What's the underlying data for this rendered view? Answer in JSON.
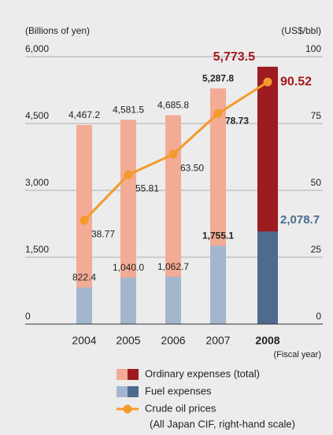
{
  "chart_data": {
    "type": "bar",
    "ylabel": "(Billions of yen)",
    "y2label": "(US$/bbl)",
    "xlabel": "(Fiscal year)",
    "categories": [
      "2004",
      "2005",
      "2006",
      "2007",
      "2008"
    ],
    "ylim": [
      0,
      6000
    ],
    "yticks": [
      0,
      {
        "value": 1500,
        "label": "1,500"
      },
      {
        "value": 3000,
        "label": "3,000"
      },
      {
        "value": 4500,
        "label": "4,500"
      },
      {
        "value": 6000,
        "label": "6,000"
      }
    ],
    "y2lim": [
      0,
      100
    ],
    "y2ticks": [
      0,
      25,
      50,
      75,
      100
    ],
    "grid": true,
    "series": [
      {
        "name": "Ordinary expenses (total)",
        "color": "#f2ab95",
        "colors": [
          "#f2ab95",
          "#f2ab95",
          "#f2ab95",
          "#f2ab95",
          "#9e1b20"
        ],
        "values": [
          4467.2,
          4581.5,
          4685.8,
          5287.8,
          5773.5
        ],
        "value_labels": [
          "4,467.2",
          "4,581.5",
          "4,685.8",
          "5,287.8",
          "5,773.5"
        ]
      },
      {
        "name": "Fuel expenses",
        "color": "#a3b6cd",
        "colors": [
          "#a3b6cd",
          "#a3b6cd",
          "#a3b6cd",
          "#a3b6cd",
          "#4d6b8e"
        ],
        "values": [
          822.4,
          1040.0,
          1062.7,
          1755.1,
          2078.7
        ],
        "value_labels": [
          "822.4",
          "1,040.0",
          "1,062.7",
          "1,755.1",
          "2,078.7"
        ]
      },
      {
        "name": "Crude oil prices",
        "note": "(All Japan CIF, right-hand scale)",
        "color": "#f39a2b",
        "axis": "y2",
        "values": [
          38.77,
          55.81,
          63.5,
          78.73,
          90.52
        ],
        "value_labels": [
          "38.77",
          "55.81",
          "63.50",
          "78.73",
          "90.52"
        ]
      }
    ]
  }
}
